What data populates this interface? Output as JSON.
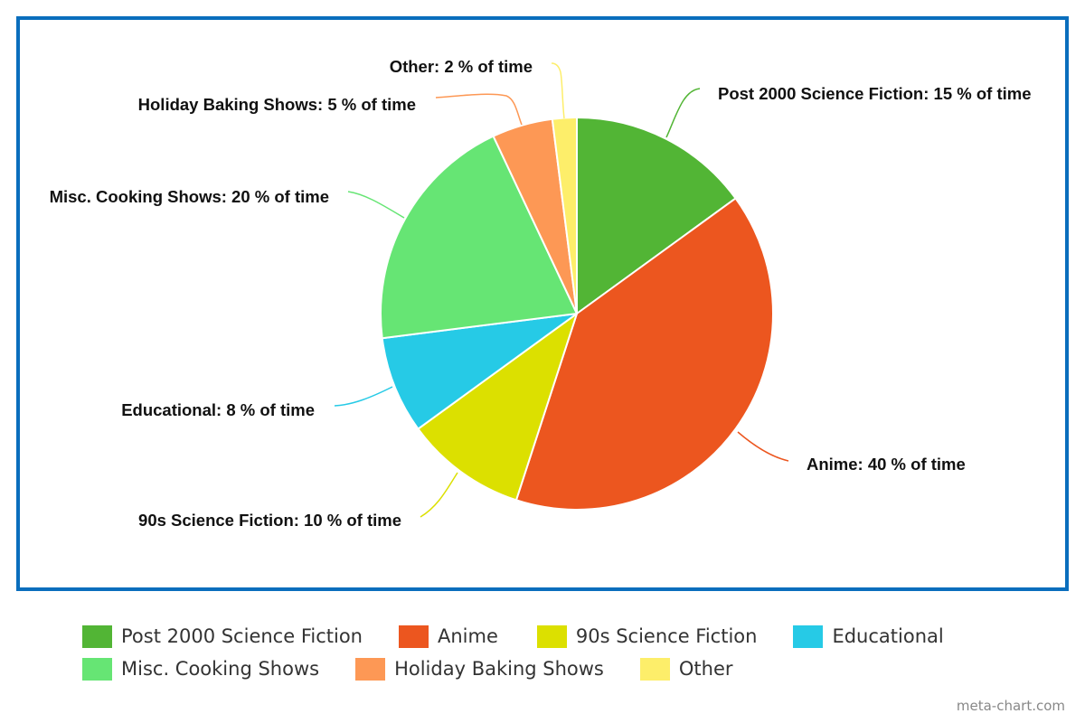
{
  "chart_data": {
    "type": "pie",
    "title": "",
    "start_angle_deg": 0,
    "direction": "clockwise",
    "label_suffix": " % of time",
    "slices": [
      {
        "name": "Post 2000 Science Fiction",
        "value": 15,
        "color": "#52b535",
        "label": "Post 2000 Science Fiction: 15 % of time"
      },
      {
        "name": "Anime",
        "value": 40,
        "color": "#ec561f",
        "label": "Anime: 40 % of time"
      },
      {
        "name": "90s Science Fiction",
        "value": 10,
        "color": "#dce000",
        "label": "90s Science Fiction: 10 % of time"
      },
      {
        "name": "Educational",
        "value": 8,
        "color": "#26cae6",
        "label": "Educational: 8 % of time"
      },
      {
        "name": "Misc. Cooking Shows",
        "value": 20,
        "color": "#66e574",
        "label": "Misc. Cooking Shows: 20 % of time"
      },
      {
        "name": "Holiday Baking Shows",
        "value": 5,
        "color": "#fd9855",
        "label": "Holiday Baking Shows: 5 % of time"
      },
      {
        "name": "Other",
        "value": 2,
        "color": "#fdee6a",
        "label": "Other: 2 % of time"
      }
    ],
    "legend_position": "bottom"
  },
  "legend": {
    "rows": [
      [
        {
          "label": "Post 2000 Science Fiction",
          "color": "#52b535"
        },
        {
          "label": "Anime",
          "color": "#ec561f"
        },
        {
          "label": "90s Science Fiction",
          "color": "#dce000"
        },
        {
          "label": "Educational",
          "color": "#26cae6"
        }
      ],
      [
        {
          "label": "Misc. Cooking Shows",
          "color": "#66e574"
        },
        {
          "label": "Holiday Baking Shows",
          "color": "#fd9855"
        },
        {
          "label": "Other",
          "color": "#fdee6a"
        }
      ]
    ]
  },
  "labels": {
    "post2000": "Post 2000 Science Fiction: 15 % of time",
    "anime": "Anime: 40 % of time",
    "sf90s": "90s Science Fiction: 10 % of time",
    "educational": "Educational: 8 % of time",
    "cooking": "Misc. Cooking Shows: 20 % of time",
    "baking": "Holiday Baking Shows: 5 % of time",
    "other": "Other: 2 % of time"
  },
  "credit": "meta-chart.com",
  "colors": {
    "frame_border": "#0a6ebd"
  }
}
